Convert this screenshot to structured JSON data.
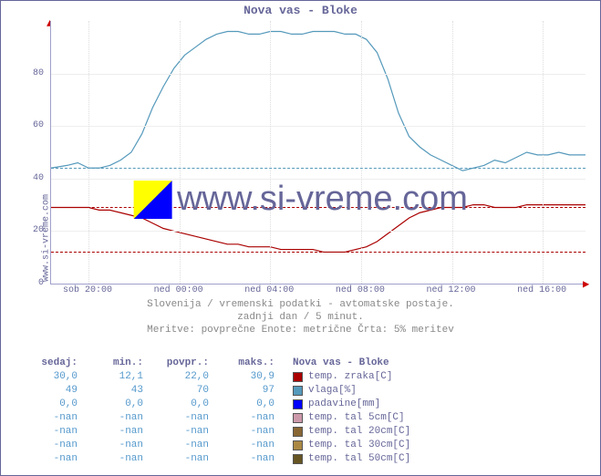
{
  "title": "Nova vas - Bloke",
  "ylabel": "www.si-vreme.com",
  "watermark_text": "www.si-vreme.com",
  "axes": {
    "ylim": [
      0,
      100
    ],
    "yticks": [
      0,
      20,
      40,
      60,
      80
    ],
    "xlabels": [
      "sob 20:00",
      "ned 00:00",
      "ned 04:00",
      "ned 08:00",
      "ned 12:00",
      "ned 16:00"
    ],
    "xpositions_pct": [
      7,
      24,
      41,
      58,
      75,
      92
    ],
    "grid_color": "#eeeeee",
    "background_color": "#ffffff"
  },
  "subtitle": {
    "line1": "Slovenija / vremenski podatki - avtomatske postaje.",
    "line2": "zadnji dan / 5 minut.",
    "line3": "Meritve: povprečne  Enote: metrične  Črta: 5% meritev"
  },
  "series": {
    "vlaga": {
      "color": "#5599bb",
      "dashed_y": 44,
      "points": [
        [
          0,
          44
        ],
        [
          3,
          45
        ],
        [
          5,
          46
        ],
        [
          7,
          44
        ],
        [
          9,
          44
        ],
        [
          11,
          45
        ],
        [
          13,
          47
        ],
        [
          15,
          50
        ],
        [
          17,
          57
        ],
        [
          19,
          67
        ],
        [
          21,
          75
        ],
        [
          23,
          82
        ],
        [
          25,
          87
        ],
        [
          27,
          90
        ],
        [
          29,
          93
        ],
        [
          31,
          95
        ],
        [
          33,
          96
        ],
        [
          35,
          96
        ],
        [
          37,
          95
        ],
        [
          39,
          95
        ],
        [
          41,
          96
        ],
        [
          43,
          96
        ],
        [
          45,
          95
        ],
        [
          47,
          95
        ],
        [
          49,
          96
        ],
        [
          51,
          96
        ],
        [
          53,
          96
        ],
        [
          55,
          95
        ],
        [
          57,
          95
        ],
        [
          59,
          93
        ],
        [
          61,
          88
        ],
        [
          63,
          78
        ],
        [
          65,
          65
        ],
        [
          67,
          56
        ],
        [
          69,
          52
        ],
        [
          71,
          49
        ],
        [
          73,
          47
        ],
        [
          75,
          45
        ],
        [
          77,
          43
        ],
        [
          79,
          44
        ],
        [
          81,
          45
        ],
        [
          83,
          47
        ],
        [
          85,
          46
        ],
        [
          87,
          48
        ],
        [
          89,
          50
        ],
        [
          91,
          49
        ],
        [
          93,
          49
        ],
        [
          95,
          50
        ],
        [
          97,
          49
        ],
        [
          100,
          49
        ]
      ]
    },
    "temp": {
      "color": "#aa0000",
      "dashed_y_low": 12,
      "dashed_y_high": 29,
      "points": [
        [
          0,
          29
        ],
        [
          3,
          29
        ],
        [
          5,
          29
        ],
        [
          7,
          29
        ],
        [
          9,
          28
        ],
        [
          11,
          28
        ],
        [
          13,
          27
        ],
        [
          15,
          26
        ],
        [
          17,
          25
        ],
        [
          19,
          23
        ],
        [
          21,
          21
        ],
        [
          23,
          20
        ],
        [
          25,
          19
        ],
        [
          27,
          18
        ],
        [
          29,
          17
        ],
        [
          31,
          16
        ],
        [
          33,
          15
        ],
        [
          35,
          15
        ],
        [
          37,
          14
        ],
        [
          39,
          14
        ],
        [
          41,
          14
        ],
        [
          43,
          13
        ],
        [
          45,
          13
        ],
        [
          47,
          13
        ],
        [
          49,
          13
        ],
        [
          51,
          12
        ],
        [
          53,
          12
        ],
        [
          55,
          12
        ],
        [
          57,
          13
        ],
        [
          59,
          14
        ],
        [
          61,
          16
        ],
        [
          63,
          19
        ],
        [
          65,
          22
        ],
        [
          67,
          25
        ],
        [
          69,
          27
        ],
        [
          71,
          28
        ],
        [
          73,
          29
        ],
        [
          75,
          29
        ],
        [
          77,
          29
        ],
        [
          79,
          30
        ],
        [
          81,
          30
        ],
        [
          83,
          29
        ],
        [
          85,
          29
        ],
        [
          87,
          29
        ],
        [
          89,
          30
        ],
        [
          91,
          30
        ],
        [
          93,
          30
        ],
        [
          95,
          30
        ],
        [
          97,
          30
        ],
        [
          100,
          30
        ]
      ]
    }
  },
  "table": {
    "headers": [
      "sedaj:",
      "min.:",
      "povpr.:",
      "maks.:"
    ],
    "rows": [
      [
        "30,0",
        "12,1",
        "22,0",
        "30,9"
      ],
      [
        "49",
        "43",
        "70",
        "97"
      ],
      [
        "0,0",
        "0,0",
        "0,0",
        "0,0"
      ],
      [
        "-nan",
        "-nan",
        "-nan",
        "-nan"
      ],
      [
        "-nan",
        "-nan",
        "-nan",
        "-nan"
      ],
      [
        "-nan",
        "-nan",
        "-nan",
        "-nan"
      ],
      [
        "-nan",
        "-nan",
        "-nan",
        "-nan"
      ]
    ]
  },
  "legend": {
    "title": "Nova vas - Bloke",
    "items": [
      {
        "label": "temp. zraka[C]",
        "color": "#aa0000"
      },
      {
        "label": "vlaga[%]",
        "color": "#5599bb"
      },
      {
        "label": "padavine[mm]",
        "color": "#0000ff"
      },
      {
        "label": "temp. tal  5cm[C]",
        "color": "#cc99aa"
      },
      {
        "label": "temp. tal 20cm[C]",
        "color": "#886633"
      },
      {
        "label": "temp. tal 30cm[C]",
        "color": "#aa8844"
      },
      {
        "label": "temp. tal 50cm[C]",
        "color": "#665522"
      }
    ]
  }
}
